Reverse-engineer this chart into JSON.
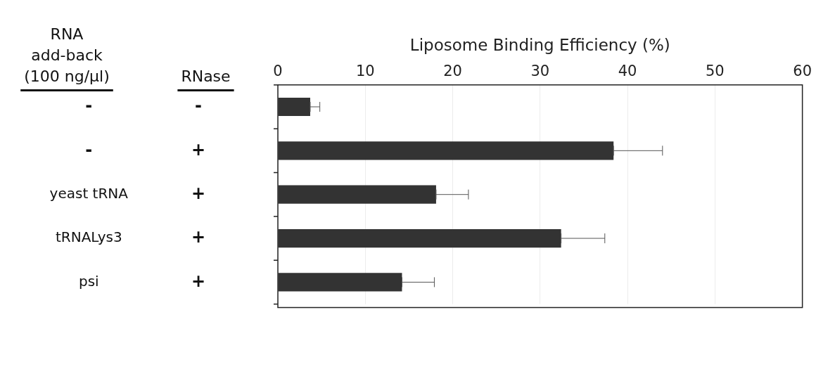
{
  "chart_data": {
    "type": "bar",
    "orientation": "horizontal",
    "xlabel": "Liposome Binding Efficiency (%)",
    "annotations": [
      "RNA add-back (100 ng/µl)",
      "RNase"
    ],
    "categories": [
      "-",
      "+",
      "+",
      "+",
      "+"
    ],
    "y2_categories": [
      "-",
      "-",
      "yeast tRNA",
      "tRNALys3",
      "psi"
    ],
    "values": [
      3.7,
      38.4,
      18.1,
      32.4,
      14.2
    ],
    "errors": [
      [
        3.7,
        4.8
      ],
      [
        38.4,
        44.0
      ],
      [
        18.1,
        21.8
      ],
      [
        32.4,
        37.4
      ],
      [
        14.2,
        17.9
      ]
    ],
    "color": "#333333",
    "xlim": [
      0,
      60
    ],
    "xticks": [
      0,
      10,
      20,
      30,
      40,
      50,
      60
    ],
    "grid": "x",
    "legend": false
  }
}
